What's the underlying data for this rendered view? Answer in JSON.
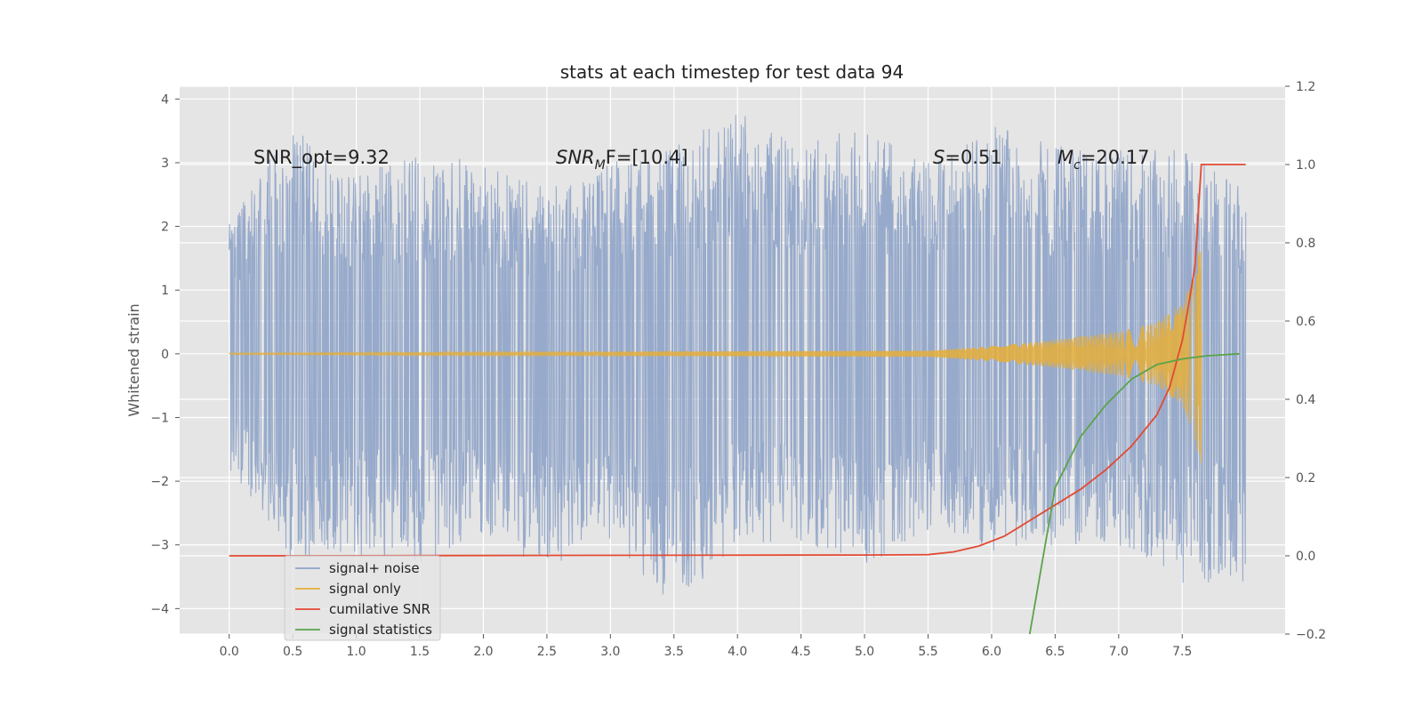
{
  "chart_data": {
    "type": "line",
    "title": "stats at each timestep for test data 94",
    "ylabel": "Whitened strain",
    "y2label": "",
    "xlim": [
      -0.39,
      8.31
    ],
    "ylim": [
      -4.4,
      4.2
    ],
    "y2lim": [
      -0.2,
      1.2
    ],
    "x_ticks": [
      0.0,
      0.5,
      1.0,
      1.5,
      2.0,
      2.5,
      3.0,
      3.5,
      4.0,
      4.5,
      5.0,
      5.5,
      6.0,
      6.5,
      7.0,
      7.5
    ],
    "x_tick_labels": [
      "0.0",
      "0.5",
      "1.0",
      "1.5",
      "2.0",
      "2.5",
      "3.0",
      "3.5",
      "4.0",
      "4.5",
      "5.0",
      "5.5",
      "6.0",
      "6.5",
      "7.0",
      "7.5"
    ],
    "y_ticks": [
      -4,
      -3,
      -2,
      -1,
      0,
      1,
      2,
      3,
      4
    ],
    "y_tick_labels": [
      "−4",
      "−3",
      "−2",
      "−1",
      "0",
      "1",
      "2",
      "3",
      "4"
    ],
    "y2_ticks": [
      -0.2,
      0.0,
      0.2,
      0.4,
      0.6,
      0.8,
      1.0,
      1.2
    ],
    "y2_tick_labels": [
      "−0.2",
      "0.0",
      "0.2",
      "0.4",
      "0.6",
      "0.8",
      "1.0",
      "1.2"
    ],
    "grid": true,
    "legend_position": "lower-left",
    "annotations": [
      "SNR_opt=9.32",
      "SNR",
      "M",
      "F=[10.4]",
      "S",
      "=0.51",
      "M",
      "c",
      "=20.17"
    ],
    "series": [
      {
        "name": "signal+ noise",
        "axis": "left",
        "color": "#8ea3c8",
        "kind": "noise-band",
        "x_range": [
          0.0,
          8.0
        ],
        "envelope_x": [
          0.0,
          0.5,
          1.0,
          1.5,
          2.0,
          2.5,
          3.0,
          3.5,
          4.0,
          4.5,
          5.0,
          5.5,
          6.0,
          6.5,
          7.0,
          7.5,
          8.0
        ],
        "envelope_max": [
          2.1,
          3.6,
          2.8,
          3.2,
          3.0,
          2.6,
          3.0,
          3.3,
          3.8,
          3.3,
          3.6,
          3.0,
          3.6,
          3.3,
          3.2,
          3.2,
          2.7
        ],
        "envelope_min": [
          -1.8,
          -3.3,
          -3.2,
          -3.3,
          -2.8,
          -3.5,
          -3.0,
          -4.0,
          -3.0,
          -3.0,
          -3.4,
          -2.8,
          -3.1,
          -3.0,
          -3.0,
          -3.6,
          -3.6
        ]
      },
      {
        "name": "signal only",
        "axis": "left",
        "color": "#e5ae38",
        "kind": "chirp",
        "x": [
          0.0,
          5.5,
          6.0,
          6.5,
          7.0,
          7.3,
          7.5,
          7.6,
          7.65
        ],
        "amplitude": [
          0.01,
          0.05,
          0.12,
          0.22,
          0.35,
          0.5,
          0.8,
          1.3,
          1.8
        ]
      },
      {
        "name": "cumilative SNR",
        "axis": "right",
        "color": "#e24a33",
        "kind": "line",
        "x": [
          0.0,
          5.0,
          5.5,
          5.7,
          5.9,
          6.1,
          6.3,
          6.5,
          6.7,
          6.9,
          7.1,
          7.3,
          7.4,
          7.5,
          7.55,
          7.6,
          7.65,
          8.0
        ],
        "values": [
          0.0,
          0.002,
          0.003,
          0.01,
          0.025,
          0.05,
          0.09,
          0.13,
          0.17,
          0.22,
          0.28,
          0.36,
          0.43,
          0.55,
          0.64,
          0.74,
          1.0,
          1.0
        ]
      },
      {
        "name": "signal statistics",
        "axis": "left",
        "color": "#5ba34a",
        "kind": "line",
        "x": [
          6.3,
          6.5,
          6.7,
          6.9,
          7.1,
          7.3,
          7.5,
          7.7,
          7.95
        ],
        "values": [
          -4.4,
          -2.1,
          -1.3,
          -0.8,
          -0.4,
          -0.17,
          -0.08,
          -0.03,
          0.0
        ]
      }
    ]
  }
}
